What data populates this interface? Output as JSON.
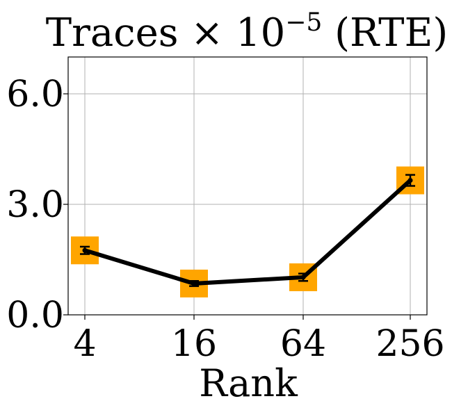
{
  "chart_data": {
    "type": "line",
    "title": "Traces × 10−5 (RTE)",
    "title_main": "Traces × 10",
    "title_exp": "−5",
    "title_suffix": " (RTE)",
    "xlabel": "Rank",
    "ylabel": "",
    "categories": [
      "4",
      "16",
      "64",
      "256"
    ],
    "yticks": [
      "0.0",
      "3.0",
      "6.0"
    ],
    "ytick_values": [
      0,
      3,
      6
    ],
    "ylim": [
      0,
      7
    ],
    "grid": true,
    "series": [
      {
        "values": [
          1.75,
          0.85,
          1.02,
          3.65
        ],
        "errors": [
          0.1,
          0.07,
          0.1,
          0.15
        ],
        "line_color": "#000000",
        "marker_color": "#ffa500",
        "marker": "square"
      }
    ]
  }
}
